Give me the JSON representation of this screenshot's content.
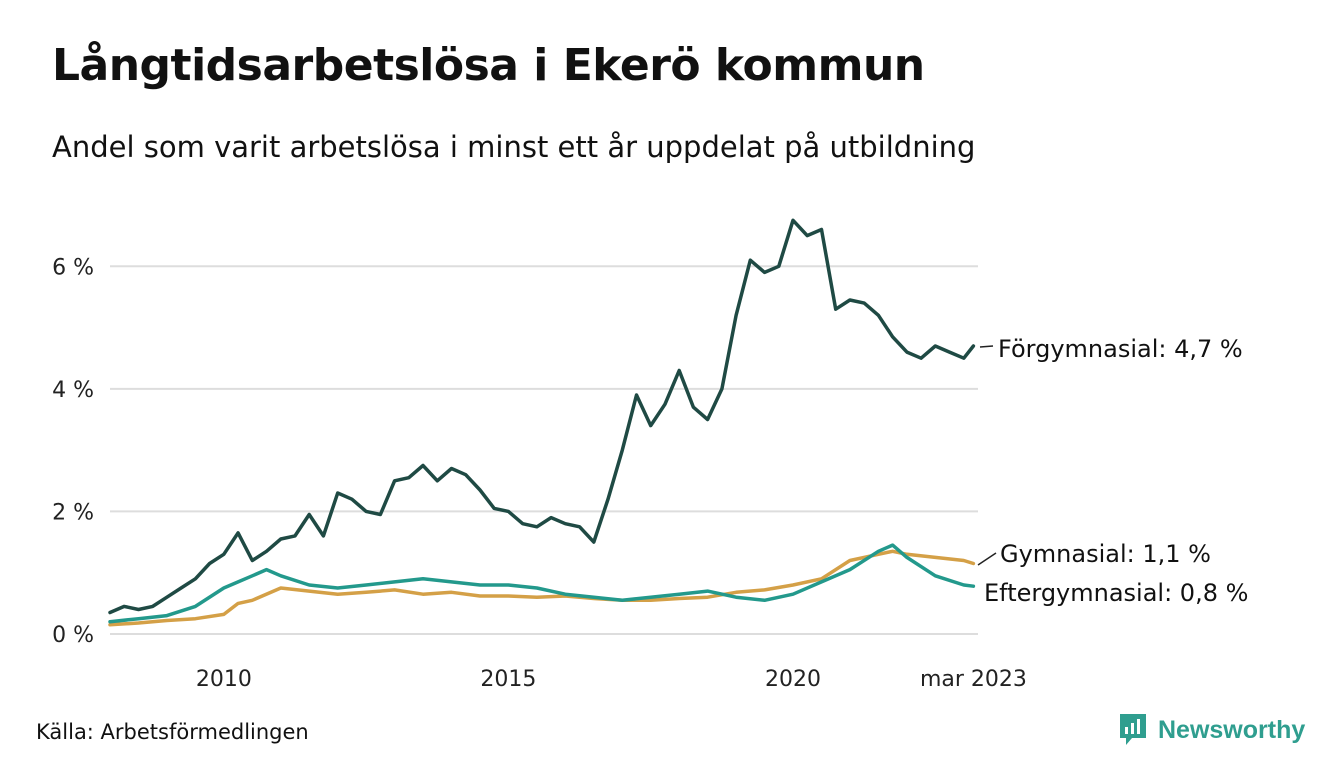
{
  "title": "Långtidsarbetslösa i Ekerö kommun",
  "subtitle": "Andel som varit arbetslösa i minst ett år uppdelat på utbildning",
  "source": "Källa: Arbetsförmedlingen",
  "brand": {
    "name": "Newsworthy",
    "icon": "newsworthy-logo-icon",
    "color": "#2f9e8f"
  },
  "chart_data": {
    "type": "line",
    "x_unit": "year (decimal)",
    "xlim": [
      2008.0,
      2023.25
    ],
    "ylim": [
      0,
      7
    ],
    "y_ticks": [
      {
        "value": 0,
        "label": "0 %"
      },
      {
        "value": 2,
        "label": "2 %"
      },
      {
        "value": 4,
        "label": "4 %"
      },
      {
        "value": 6,
        "label": "6 %"
      }
    ],
    "x_ticks": [
      {
        "value": 2010,
        "label": "2010"
      },
      {
        "value": 2015,
        "label": "2015"
      },
      {
        "value": 2020,
        "label": "2020"
      },
      {
        "value": 2023.17,
        "label": "mar 2023"
      }
    ],
    "grid": true,
    "legend": "end-of-line labels",
    "series": [
      {
        "name": "Förgymnasial",
        "end_label": "Förgymnasial: 4,7 %",
        "color": "#1f4a44",
        "x": [
          2008.0,
          2008.25,
          2008.5,
          2008.75,
          2009.0,
          2009.25,
          2009.5,
          2009.75,
          2010.0,
          2010.25,
          2010.5,
          2010.75,
          2011.0,
          2011.25,
          2011.5,
          2011.75,
          2012.0,
          2012.25,
          2012.5,
          2012.75,
          2013.0,
          2013.25,
          2013.5,
          2013.75,
          2014.0,
          2014.25,
          2014.5,
          2014.75,
          2015.0,
          2015.25,
          2015.5,
          2015.75,
          2016.0,
          2016.25,
          2016.5,
          2016.75,
          2017.0,
          2017.25,
          2017.5,
          2017.75,
          2018.0,
          2018.25,
          2018.5,
          2018.75,
          2019.0,
          2019.25,
          2019.5,
          2019.75,
          2020.0,
          2020.25,
          2020.5,
          2020.75,
          2021.0,
          2021.25,
          2021.5,
          2021.75,
          2022.0,
          2022.25,
          2022.5,
          2022.75,
          2023.0,
          2023.17
        ],
        "values": [
          0.35,
          0.45,
          0.4,
          0.45,
          0.6,
          0.75,
          0.9,
          1.15,
          1.3,
          1.65,
          1.2,
          1.35,
          1.55,
          1.6,
          1.95,
          1.6,
          2.3,
          2.2,
          2.0,
          1.95,
          2.5,
          2.55,
          2.75,
          2.5,
          2.7,
          2.6,
          2.35,
          2.05,
          2.0,
          1.8,
          1.75,
          1.9,
          1.8,
          1.75,
          1.5,
          2.2,
          3.0,
          3.9,
          3.4,
          3.75,
          4.3,
          3.7,
          3.5,
          4.0,
          5.2,
          6.1,
          5.9,
          6.0,
          6.75,
          6.5,
          6.6,
          5.3,
          5.45,
          5.4,
          5.2,
          4.85,
          4.6,
          4.5,
          4.7,
          4.6,
          4.5,
          4.7
        ]
      },
      {
        "name": "Gymnasial",
        "end_label": "Gymnasial: 1,1 %",
        "color": "#d4a047",
        "x": [
          2008.0,
          2008.5,
          2009.0,
          2009.5,
          2010.0,
          2010.25,
          2010.5,
          2011.0,
          2011.5,
          2012.0,
          2012.5,
          2013.0,
          2013.5,
          2014.0,
          2014.5,
          2015.0,
          2015.5,
          2016.0,
          2016.5,
          2017.0,
          2017.5,
          2018.0,
          2018.5,
          2019.0,
          2019.5,
          2020.0,
          2020.5,
          2021.0,
          2021.5,
          2021.75,
          2022.0,
          2022.5,
          2023.0,
          2023.17
        ],
        "values": [
          0.15,
          0.18,
          0.22,
          0.25,
          0.32,
          0.5,
          0.55,
          0.75,
          0.7,
          0.65,
          0.68,
          0.72,
          0.65,
          0.68,
          0.62,
          0.62,
          0.6,
          0.62,
          0.58,
          0.55,
          0.55,
          0.58,
          0.6,
          0.68,
          0.72,
          0.8,
          0.9,
          1.2,
          1.3,
          1.35,
          1.3,
          1.25,
          1.2,
          1.15
        ]
      },
      {
        "name": "Eftergymnasial",
        "end_label": "Eftergymnasial: 0,8 %",
        "color": "#23998c",
        "x": [
          2008.0,
          2008.5,
          2009.0,
          2009.5,
          2010.0,
          2010.25,
          2010.5,
          2010.75,
          2011.0,
          2011.5,
          2012.0,
          2012.5,
          2013.0,
          2013.5,
          2014.0,
          2014.5,
          2015.0,
          2015.5,
          2016.0,
          2016.5,
          2017.0,
          2017.5,
          2018.0,
          2018.5,
          2019.0,
          2019.5,
          2020.0,
          2020.5,
          2021.0,
          2021.5,
          2021.75,
          2022.0,
          2022.5,
          2023.0,
          2023.17
        ],
        "values": [
          0.2,
          0.25,
          0.3,
          0.45,
          0.75,
          0.85,
          0.95,
          1.05,
          0.95,
          0.8,
          0.75,
          0.8,
          0.85,
          0.9,
          0.85,
          0.8,
          0.8,
          0.75,
          0.65,
          0.6,
          0.55,
          0.6,
          0.65,
          0.7,
          0.6,
          0.55,
          0.65,
          0.85,
          1.05,
          1.35,
          1.45,
          1.25,
          0.95,
          0.8,
          0.78
        ]
      }
    ]
  }
}
